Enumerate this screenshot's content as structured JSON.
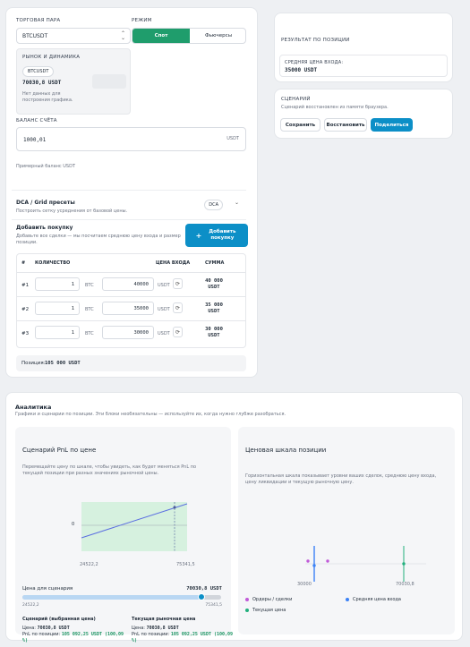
{
  "pair": {
    "label": "ТОРГОВАЯ ПАРА",
    "value": "BTCUSDT"
  },
  "mode": {
    "label": "РЕЖИМ",
    "spot": "Спот",
    "futures": "Фьючерсы"
  },
  "market": {
    "label": "РЫНОК И ДИНАМИКА",
    "chip": "BTCUSDT",
    "price": "70030,8 USDT",
    "no_data": "Нет данных для построения графика."
  },
  "balance": {
    "label": "БАЛАНС СЧЁТА",
    "value": "1000,01",
    "unit": "USDT",
    "hint": "Примерный баланс USDT"
  },
  "dca": {
    "title": "DCA / Grid пресеты",
    "subtitle": "Построить сетку усреднения от базовой цены.",
    "badge": "DCA"
  },
  "add_buy": {
    "title": "Добавить покупку",
    "desc": "Добавьте все сделки — мы посчитаем среднюю цену входа и размер позиции.",
    "button": "Добавить покупку",
    "button_icon": "+"
  },
  "table": {
    "headers": [
      "#",
      "КОЛИЧЕСТВО",
      "ЦЕНА ВХОДА",
      "СУММА"
    ],
    "rows": [
      {
        "n": "#1",
        "qty": "1",
        "unit": "BTC",
        "price": "40000",
        "cur": "USDT",
        "sum": "40 000",
        "sum_cur": "USDT"
      },
      {
        "n": "#2",
        "qty": "1",
        "unit": "BTC",
        "price": "35000",
        "cur": "USDT",
        "sum": "35 000",
        "sum_cur": "USDT"
      },
      {
        "n": "#3",
        "qty": "1",
        "unit": "BTC",
        "price": "30000",
        "cur": "USDT",
        "sum": "30 000",
        "sum_cur": "USDT"
      }
    ]
  },
  "position": {
    "label": "Позиция:",
    "value": "105 000 USDT"
  },
  "result": {
    "title": "РЕЗУЛЬТАТ ПО ПОЗИЦИИ",
    "avg_label": "СРЕДНЯЯ ЦЕНА ВХОДА:",
    "avg_value": "35000 USDT"
  },
  "scenario": {
    "title": "СЦЕНАРИЙ",
    "subtitle": "Сценарий восстановлен из памяти браузера.",
    "save": "Сохранить",
    "restore": "Восстановить",
    "share": "Поделиться"
  },
  "analytics": {
    "title": "Аналитика",
    "subtitle": "Графики и сценарии по позиции. Эти блоки необязательны — используйте их, когда нужно глубже разобраться."
  },
  "pnl": {
    "title": "Сценарий PnL по цене",
    "desc": "Перемещайте цену по шкале, чтобы увидеть, как будет меняться PnL по текущей позиции при разных значениях рыночной цены.",
    "zero_label": "0",
    "x_min": "24522,2",
    "x_max": "75341,5",
    "slider_label": "Цена для сценария",
    "slider_value": "70030,8 USDT",
    "slider_min": "24522,2",
    "slider_max": "75341,5",
    "slider_fraction": 0.9,
    "scenario_title": "Сценарий (выбранная цена)",
    "scenario_price_label": "Цена:",
    "scenario_price": "70030,8 USDT",
    "scenario_pnl_label": "PnL по позиции:",
    "scenario_pnl": "105 092,25 USDT (100,09 %)",
    "market_title": "Текущая рыночная цена",
    "market_price_label": "Цена:",
    "market_price": "70030,8 USDT",
    "market_pnl_label": "PnL по позиции:",
    "market_pnl": "105 092,25 USDT (100,09 %)"
  },
  "scale": {
    "title": "Ценовая шкала позиции",
    "desc": "Горизонтальная шкала показывает уровни ваших сделок, среднюю цену входа, цену ликвидации и текущую рыночную цену.",
    "left_tick": "30000",
    "right_tick": "70030,8",
    "legend": [
      {
        "label": "Ордеры / сделки",
        "color": "#c05ad8"
      },
      {
        "label": "Средняя цена входа",
        "color": "#3b82f6"
      },
      {
        "label": "Текущая цена",
        "color": "#22b07d"
      }
    ]
  },
  "colors": {
    "accent": "#0c8fc7",
    "mode_active": "#1f9d6c",
    "positive": "#17935f"
  }
}
